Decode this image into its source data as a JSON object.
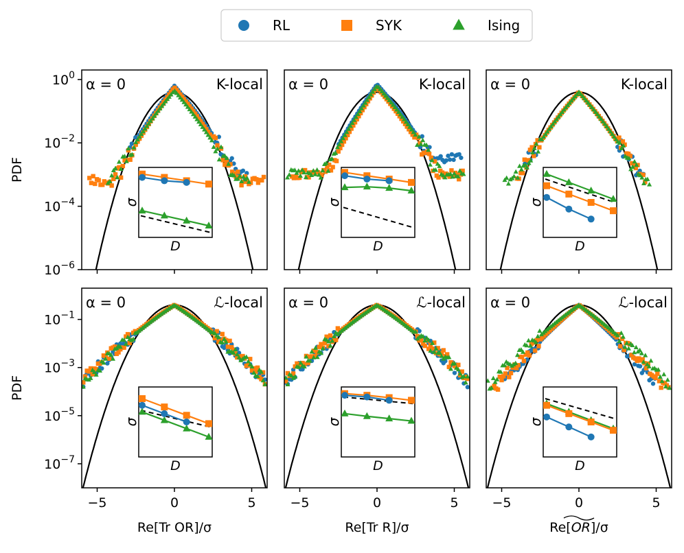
{
  "colors": {
    "RL": "#1f77b4",
    "SYK": "#ff7f0e",
    "Ising": "#2ca02c",
    "gaussian": "#000000"
  },
  "legend": [
    {
      "name": "RL",
      "marker": "circle"
    },
    {
      "name": "SYK",
      "marker": "square"
    },
    {
      "name": "Ising",
      "marker": "triangle"
    }
  ],
  "shared": {
    "ylabel": "PDF",
    "xlabels": [
      "Re[Tr OR]/σ",
      "Re[Tr R]/σ",
      "Re[OR~]/σ"
    ],
    "xlabel_col3_base": "Re[",
    "xlabel_col3_hat": "OR",
    "xlabel_col3_tail": "]/σ",
    "xticks": [
      "−5",
      "0",
      "5"
    ],
    "yticks_top": [
      "10^0",
      "10^-2",
      "10^-4",
      "10^-6"
    ],
    "yticks_bottom": [
      "10^-1",
      "10^-3",
      "10^-5",
      "10^-7"
    ],
    "inset_xlabel": "D",
    "inset_ylabel": "σ"
  },
  "panels": [
    {
      "alpha": "α = 0",
      "locality": "K-local"
    },
    {
      "alpha": "α = 0",
      "locality": "K-local"
    },
    {
      "alpha": "α = 0",
      "locality": "K-local"
    },
    {
      "alpha": "α = 0",
      "locality": "ℒ-local"
    },
    {
      "alpha": "α = 0",
      "locality": "ℒ-local"
    },
    {
      "alpha": "α = 0",
      "locality": "ℒ-local"
    }
  ],
  "chart_data": [
    {
      "type": "scatter",
      "panel": "K-local / Tr OR",
      "xlim": [
        -6,
        6
      ],
      "ylim_log10": [
        -6,
        0.3
      ],
      "gaussian": true,
      "series": [
        {
          "name": "RL",
          "peak_log10": -0.2,
          "left_width": 0.9,
          "right_width": 1.0,
          "floor_log10": -3.0,
          "x_left_end": -3.0,
          "x_right_end": 4.8
        },
        {
          "name": "SYK",
          "peak_log10": -0.25,
          "left_width": 0.85,
          "right_width": 0.95,
          "floor_log10": -3.2,
          "x_left_end": -5.5,
          "x_right_end": 5.8
        },
        {
          "name": "Ising",
          "peak_log10": -0.35,
          "left_width": 0.95,
          "right_width": 0.95,
          "floor_log10": -3.2,
          "x_left_end": -4.3,
          "x_right_end": 4.9
        }
      ],
      "inset": {
        "RL": [
          0.7,
          0.6,
          0.55
        ],
        "SYK": [
          0.8,
          0.7,
          0.6,
          0.5
        ],
        "Ising": [
          -0.3,
          -0.45,
          -0.6,
          -0.75
        ],
        "dashed": [
          -0.45,
          -0.95
        ]
      }
    },
    {
      "type": "scatter",
      "panel": "K-local / Tr R",
      "xlim": [
        -6,
        6
      ],
      "ylim_log10": [
        -6,
        0.3
      ],
      "gaussian": true,
      "series": [
        {
          "name": "RL",
          "peak_log10": -0.15,
          "left_width": 0.8,
          "right_width": 1.0,
          "floor_log10": -2.5,
          "x_left_end": -2.6,
          "x_right_end": 5.5
        },
        {
          "name": "SYK",
          "peak_log10": -0.25,
          "left_width": 0.75,
          "right_width": 0.95,
          "floor_log10": -3.0,
          "x_left_end": -5.5,
          "x_right_end": 5.6
        },
        {
          "name": "Ising",
          "peak_log10": -0.2,
          "left_width": 0.8,
          "right_width": 1.0,
          "floor_log10": -3.0,
          "x_left_end": -5.8,
          "x_right_end": 5.7
        }
      ],
      "inset": {
        "RL": [
          0.75,
          0.65,
          0.6
        ],
        "SYK": [
          0.85,
          0.75,
          0.65,
          0.55
        ],
        "Ising": [
          0.4,
          0.42,
          0.38,
          0.3
        ],
        "dashed": [
          -0.2,
          -0.8
        ]
      }
    },
    {
      "type": "scatter",
      "panel": "K-local / OR~",
      "xlim": [
        -6,
        6
      ],
      "ylim_log10": [
        -6,
        0.3
      ],
      "gaussian": true,
      "series": [
        {
          "name": "RL",
          "peak_log10": -0.4,
          "left_width": 1.0,
          "right_width": 1.0,
          "floor_log10": -3.0,
          "x_left_end": -3.5,
          "x_right_end": 4.2
        },
        {
          "name": "SYK",
          "peak_log10": -0.4,
          "left_width": 1.0,
          "right_width": 1.0,
          "floor_log10": -3.2,
          "x_left_end": -4.0,
          "x_right_end": 4.4
        },
        {
          "name": "Ising",
          "peak_log10": -0.4,
          "left_width": 1.0,
          "right_width": 1.0,
          "floor_log10": -3.2,
          "x_left_end": -4.8,
          "x_right_end": 4.6
        }
      ],
      "inset": {
        "RL": [
          0.1,
          -0.25,
          -0.55
        ],
        "SYK": [
          0.45,
          0.2,
          -0.05,
          -0.3
        ],
        "Ising": [
          0.8,
          0.55,
          0.3,
          0.05
        ],
        "dashed": [
          0.65,
          -0.05
        ]
      }
    },
    {
      "type": "scatter",
      "panel": "L-local / Tr OR",
      "xlim": [
        -6,
        6
      ],
      "ylim_log10": [
        -8,
        0.3
      ],
      "gaussian": true,
      "series": [
        {
          "name": "RL",
          "peak_log10": -0.4,
          "left_width": 1.3,
          "right_width": 1.3,
          "floor_log10": -4.3,
          "x_left_end": -5.9,
          "x_right_end": 5.9
        },
        {
          "name": "SYK",
          "peak_log10": -0.4,
          "left_width": 1.35,
          "right_width": 1.35,
          "floor_log10": -4.0,
          "x_left_end": -5.9,
          "x_right_end": 5.9
        },
        {
          "name": "Ising",
          "peak_log10": -0.4,
          "left_width": 1.3,
          "right_width": 1.3,
          "floor_log10": -4.3,
          "x_left_end": -5.9,
          "x_right_end": 5.9
        }
      ],
      "inset": {
        "RL": [
          0.45,
          0.2,
          -0.05
        ],
        "SYK": [
          0.65,
          0.4,
          0.15,
          -0.1
        ],
        "Ising": [
          0.25,
          0.0,
          -0.25,
          -0.5
        ],
        "dashed": [
          0.3,
          -0.2
        ]
      }
    },
    {
      "type": "scatter",
      "panel": "L-local / Tr R",
      "xlim": [
        -6,
        6
      ],
      "ylim_log10": [
        -8,
        0.3
      ],
      "gaussian": true,
      "series": [
        {
          "name": "RL",
          "peak_log10": -0.4,
          "left_width": 1.3,
          "right_width": 1.3,
          "floor_log10": -4.2,
          "x_left_end": -5.9,
          "x_right_end": 5.9
        },
        {
          "name": "SYK",
          "peak_log10": -0.4,
          "left_width": 1.35,
          "right_width": 1.35,
          "floor_log10": -4.0,
          "x_left_end": -5.9,
          "x_right_end": 5.9
        },
        {
          "name": "Ising",
          "peak_log10": -0.4,
          "left_width": 1.3,
          "right_width": 1.3,
          "floor_log10": -4.2,
          "x_left_end": -5.9,
          "x_right_end": 5.9
        }
      ],
      "inset": {
        "RL": [
          0.75,
          0.7,
          0.6
        ],
        "SYK": [
          0.8,
          0.75,
          0.68,
          0.6
        ],
        "Ising": [
          0.2,
          0.12,
          0.05,
          -0.02
        ],
        "dashed": [
          0.7,
          0.5
        ]
      }
    },
    {
      "type": "scatter",
      "panel": "L-local / OR~",
      "xlim": [
        -6,
        6
      ],
      "ylim_log10": [
        -8,
        0.3
      ],
      "gaussian": true,
      "series": [
        {
          "name": "RL",
          "peak_log10": -0.4,
          "left_width": 1.0,
          "right_width": 1.0,
          "floor_log10": -4.8,
          "x_left_end": -4.8,
          "x_right_end": 5.0
        },
        {
          "name": "SYK",
          "peak_log10": -0.4,
          "left_width": 1.05,
          "right_width": 1.1,
          "floor_log10": -4.8,
          "x_left_end": -5.6,
          "x_right_end": 5.9
        },
        {
          "name": "Ising",
          "peak_log10": -0.4,
          "left_width": 1.2,
          "right_width": 1.2,
          "floor_log10": -4.2,
          "x_left_end": -5.9,
          "x_right_end": 5.9
        }
      ],
      "inset": {
        "RL": [
          0.1,
          -0.2,
          -0.5
        ],
        "SYK": [
          0.45,
          0.2,
          -0.05,
          -0.3
        ],
        "Ising": [
          0.5,
          0.25,
          0.0,
          -0.25
        ],
        "dashed": [
          0.65,
          0.05
        ]
      }
    }
  ]
}
